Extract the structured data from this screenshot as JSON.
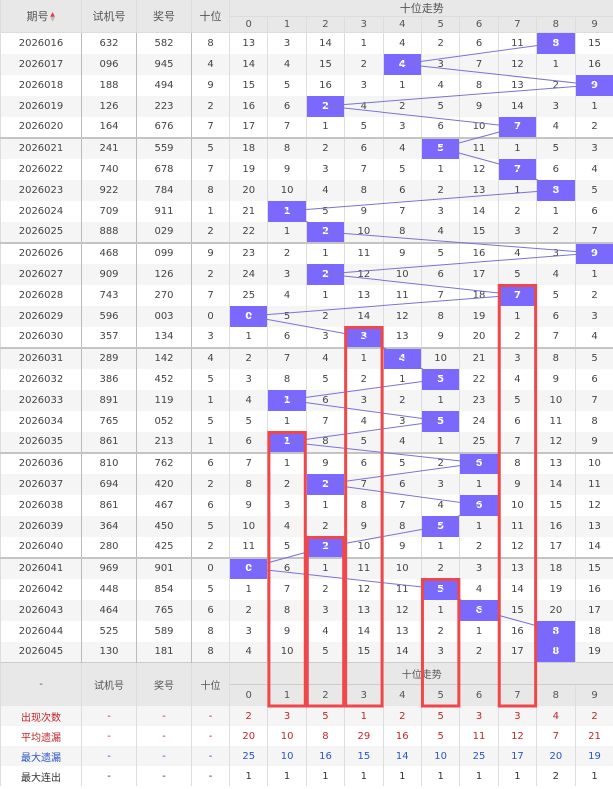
{
  "header": {
    "period": "期号",
    "test": "试机号",
    "prize": "奖号",
    "tens": "十位",
    "trend": "十位走势",
    "digits": [
      "0",
      "1",
      "2",
      "3",
      "4",
      "5",
      "6",
      "7",
      "8",
      "9"
    ]
  },
  "colors": {
    "hit": "#7b68ff",
    "line": "#7b72d6",
    "box": "#f0484a"
  },
  "rows": [
    {
      "period": "2026016",
      "test": "632",
      "prize": "582",
      "tens": "8",
      "cells": [
        13,
        3,
        14,
        1,
        4,
        2,
        6,
        11,
        8,
        15
      ]
    },
    {
      "period": "2026017",
      "test": "096",
      "prize": "945",
      "tens": "4",
      "cells": [
        14,
        4,
        15,
        2,
        4,
        3,
        7,
        12,
        1,
        16
      ]
    },
    {
      "period": "2026018",
      "test": "188",
      "prize": "494",
      "tens": "9",
      "cells": [
        15,
        5,
        16,
        3,
        1,
        4,
        8,
        13,
        2,
        9
      ]
    },
    {
      "period": "2026019",
      "test": "126",
      "prize": "223",
      "tens": "2",
      "cells": [
        16,
        6,
        2,
        4,
        2,
        5,
        9,
        14,
        3,
        1
      ]
    },
    {
      "period": "2026020",
      "test": "164",
      "prize": "676",
      "tens": "7",
      "cells": [
        17,
        7,
        1,
        5,
        3,
        6,
        10,
        7,
        4,
        2
      ]
    },
    {
      "period": "2026021",
      "test": "241",
      "prize": "559",
      "tens": "5",
      "cells": [
        18,
        8,
        2,
        6,
        4,
        5,
        11,
        1,
        5,
        3
      ]
    },
    {
      "period": "2026022",
      "test": "740",
      "prize": "678",
      "tens": "7",
      "cells": [
        19,
        9,
        3,
        7,
        5,
        1,
        12,
        7,
        6,
        4
      ]
    },
    {
      "period": "2026023",
      "test": "922",
      "prize": "784",
      "tens": "8",
      "cells": [
        20,
        10,
        4,
        8,
        6,
        2,
        13,
        1,
        8,
        5
      ]
    },
    {
      "period": "2026024",
      "test": "709",
      "prize": "911",
      "tens": "1",
      "cells": [
        21,
        1,
        5,
        9,
        7,
        3,
        14,
        2,
        1,
        6
      ]
    },
    {
      "period": "2026025",
      "test": "888",
      "prize": "029",
      "tens": "2",
      "cells": [
        22,
        1,
        2,
        10,
        8,
        4,
        15,
        3,
        2,
        7
      ]
    },
    {
      "period": "2026026",
      "test": "468",
      "prize": "099",
      "tens": "9",
      "cells": [
        23,
        2,
        1,
        11,
        9,
        5,
        16,
        4,
        3,
        9
      ]
    },
    {
      "period": "2026027",
      "test": "909",
      "prize": "126",
      "tens": "2",
      "cells": [
        24,
        3,
        2,
        12,
        10,
        6,
        17,
        5,
        4,
        1
      ]
    },
    {
      "period": "2026028",
      "test": "743",
      "prize": "270",
      "tens": "7",
      "cells": [
        25,
        4,
        1,
        13,
        11,
        7,
        18,
        7,
        5,
        2
      ]
    },
    {
      "period": "2026029",
      "test": "596",
      "prize": "003",
      "tens": "0",
      "cells": [
        0,
        5,
        2,
        14,
        12,
        8,
        19,
        1,
        6,
        3
      ]
    },
    {
      "period": "2026030",
      "test": "357",
      "prize": "134",
      "tens": "3",
      "cells": [
        1,
        6,
        3,
        3,
        13,
        9,
        20,
        2,
        7,
        4
      ]
    },
    {
      "period": "2026031",
      "test": "289",
      "prize": "142",
      "tens": "4",
      "cells": [
        2,
        7,
        4,
        1,
        4,
        10,
        21,
        3,
        8,
        5
      ]
    },
    {
      "period": "2026032",
      "test": "386",
      "prize": "452",
      "tens": "5",
      "cells": [
        3,
        8,
        5,
        2,
        1,
        5,
        22,
        4,
        9,
        6
      ]
    },
    {
      "period": "2026033",
      "test": "891",
      "prize": "119",
      "tens": "1",
      "cells": [
        4,
        1,
        6,
        3,
        2,
        1,
        23,
        5,
        10,
        7
      ]
    },
    {
      "period": "2026034",
      "test": "765",
      "prize": "052",
      "tens": "5",
      "cells": [
        5,
        1,
        7,
        4,
        3,
        5,
        24,
        6,
        11,
        8
      ]
    },
    {
      "period": "2026035",
      "test": "861",
      "prize": "213",
      "tens": "1",
      "cells": [
        6,
        1,
        8,
        5,
        4,
        1,
        25,
        7,
        12,
        9
      ]
    },
    {
      "period": "2026036",
      "test": "810",
      "prize": "762",
      "tens": "6",
      "cells": [
        7,
        1,
        9,
        6,
        5,
        2,
        6,
        8,
        13,
        10
      ]
    },
    {
      "period": "2026037",
      "test": "694",
      "prize": "420",
      "tens": "2",
      "cells": [
        8,
        2,
        2,
        7,
        6,
        3,
        1,
        9,
        14,
        11
      ]
    },
    {
      "period": "2026038",
      "test": "861",
      "prize": "467",
      "tens": "6",
      "cells": [
        9,
        3,
        1,
        8,
        7,
        4,
        6,
        10,
        15,
        12
      ]
    },
    {
      "period": "2026039",
      "test": "364",
      "prize": "450",
      "tens": "5",
      "cells": [
        10,
        4,
        2,
        9,
        8,
        5,
        1,
        11,
        16,
        13
      ]
    },
    {
      "period": "2026040",
      "test": "280",
      "prize": "425",
      "tens": "2",
      "cells": [
        11,
        5,
        2,
        10,
        9,
        1,
        2,
        12,
        17,
        14
      ]
    },
    {
      "period": "2026041",
      "test": "969",
      "prize": "901",
      "tens": "0",
      "cells": [
        0,
        6,
        1,
        11,
        10,
        2,
        3,
        13,
        18,
        15
      ]
    },
    {
      "period": "2026042",
      "test": "448",
      "prize": "854",
      "tens": "5",
      "cells": [
        1,
        7,
        2,
        12,
        11,
        5,
        4,
        14,
        19,
        16
      ]
    },
    {
      "period": "2026043",
      "test": "464",
      "prize": "765",
      "tens": "6",
      "cells": [
        2,
        8,
        3,
        13,
        12,
        1,
        6,
        15,
        20,
        17
      ]
    },
    {
      "period": "2026044",
      "test": "525",
      "prize": "589",
      "tens": "8",
      "cells": [
        3,
        9,
        4,
        14,
        13,
        2,
        1,
        16,
        8,
        18
      ]
    },
    {
      "period": "2026045",
      "test": "130",
      "prize": "181",
      "tens": "8",
      "cells": [
        4,
        10,
        5,
        15,
        14,
        3,
        2,
        17,
        8,
        19
      ]
    }
  ],
  "footer": {
    "dash": "-",
    "test": "试机号",
    "prize": "奖号",
    "tens": "十位",
    "trend": "十位走势",
    "stats": [
      {
        "label": "出现次数",
        "color": "red",
        "values": [
          2,
          3,
          5,
          1,
          2,
          5,
          3,
          3,
          4,
          2
        ]
      },
      {
        "label": "平均遗漏",
        "color": "red",
        "values": [
          20,
          10,
          8,
          29,
          16,
          5,
          11,
          12,
          7,
          21
        ]
      },
      {
        "label": "最大遗漏",
        "color": "blue",
        "values": [
          25,
          10,
          16,
          15,
          14,
          10,
          25,
          17,
          20,
          19
        ]
      },
      {
        "label": "最大连出",
        "color": "dark",
        "values": [
          1,
          1,
          1,
          1,
          1,
          1,
          1,
          1,
          2,
          1
        ]
      }
    ]
  }
}
